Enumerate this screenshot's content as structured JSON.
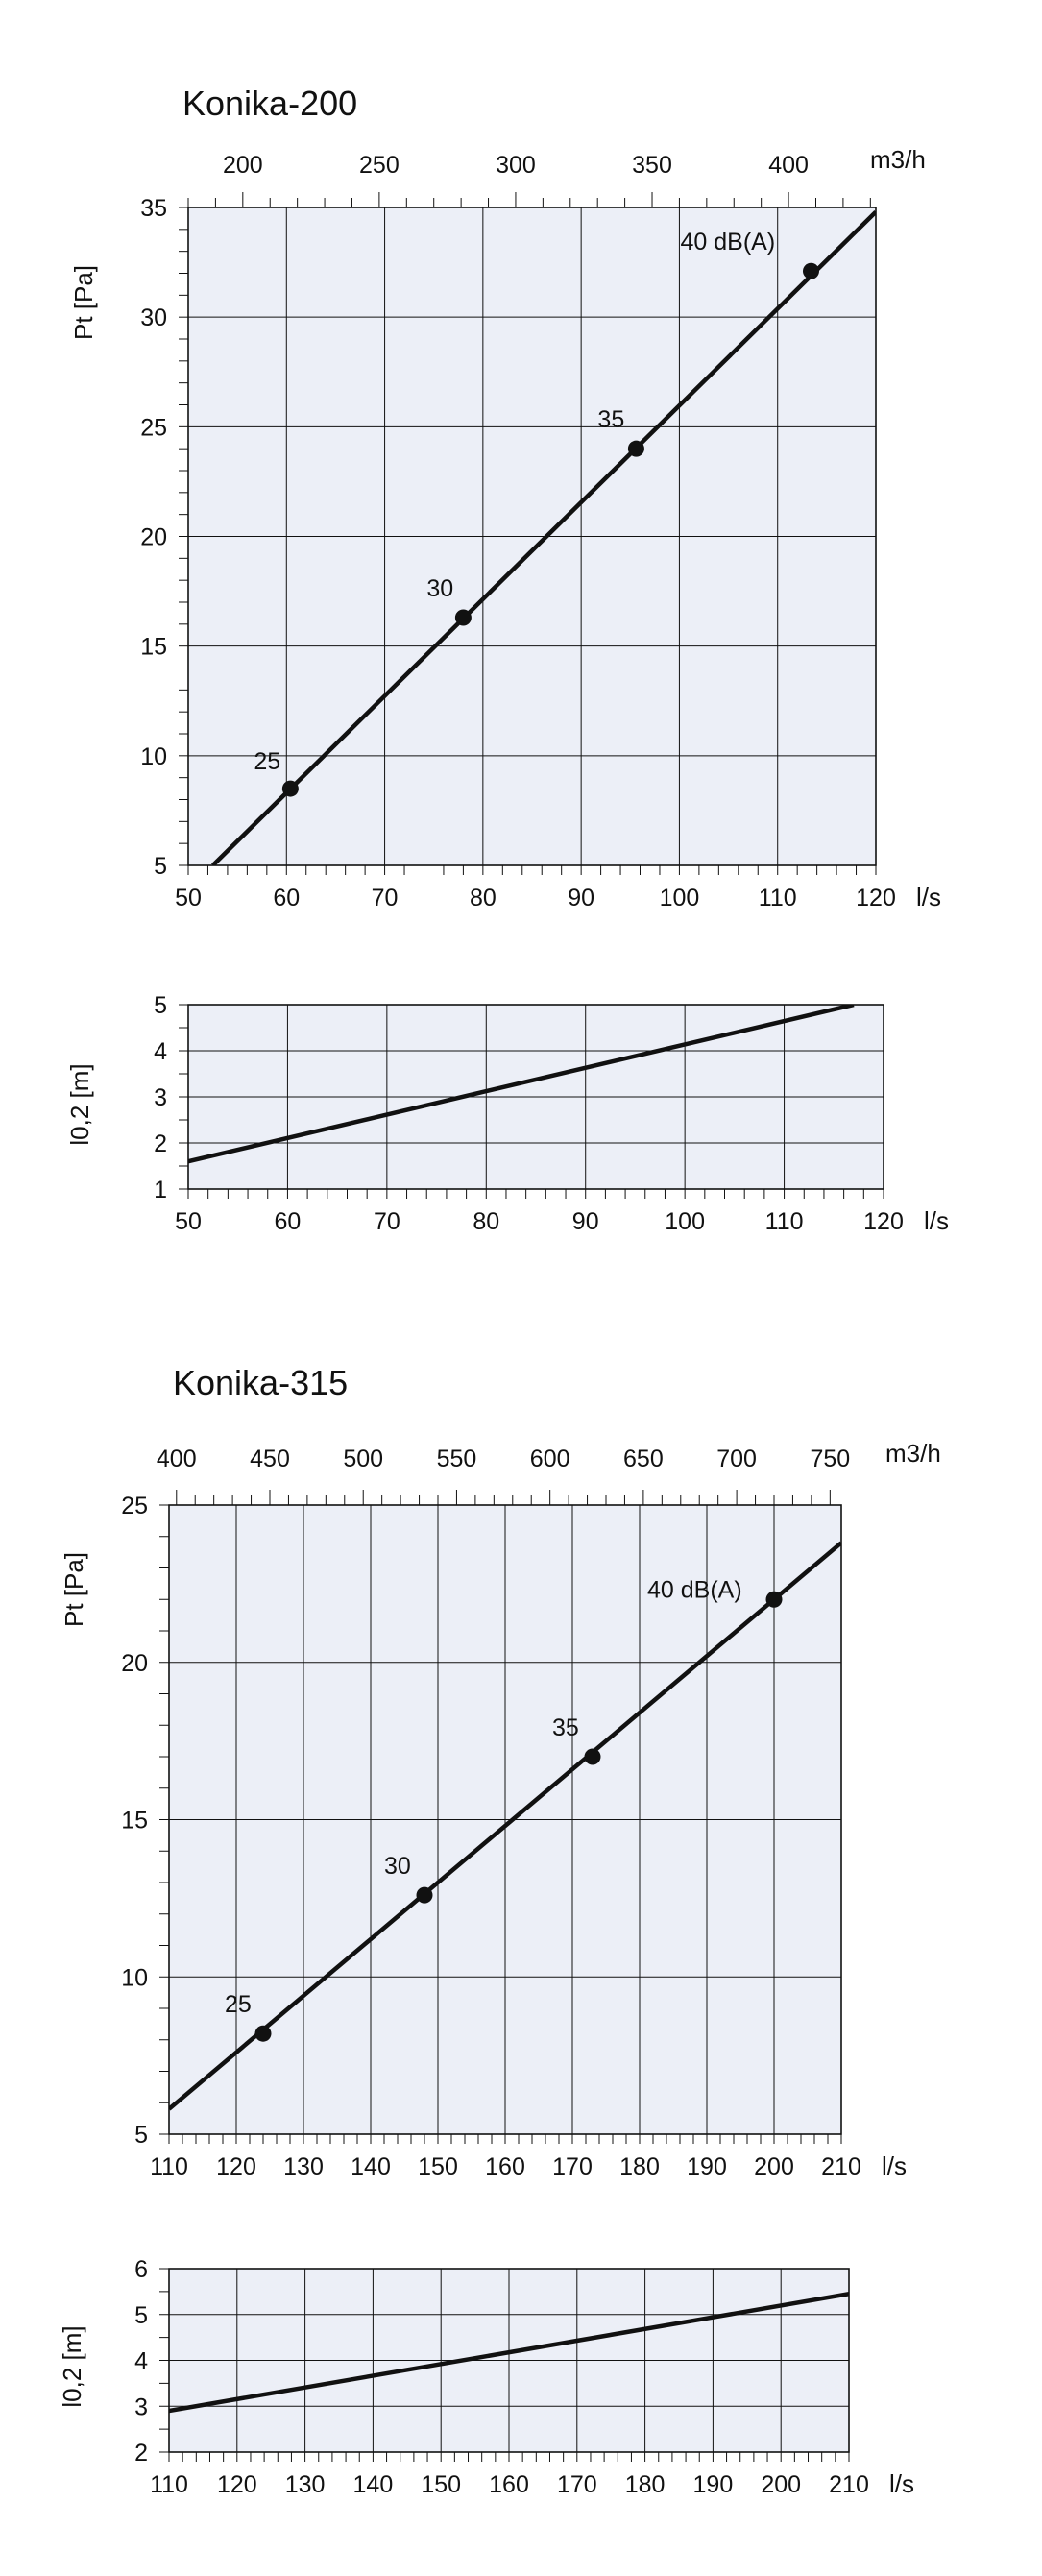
{
  "colors": {
    "plot_bg": "#eceff7",
    "ink": "#111111"
  },
  "chart_data": [
    {
      "type": "line",
      "title": "Konika-200",
      "xlabel": "l/s",
      "x2label": "m3/h",
      "ylabel": "Pt [Pa]",
      "xlim": [
        50,
        120
      ],
      "ylim": [
        5,
        35
      ],
      "x_ticks": [
        "50",
        "60",
        "70",
        "80",
        "90",
        "100",
        "110",
        "120"
      ],
      "y_ticks": [
        "5",
        "10",
        "15",
        "20",
        "25",
        "30",
        "35"
      ],
      "x2_ticks": [
        "200",
        "250",
        "300",
        "350",
        "400"
      ],
      "grid": true,
      "series": [
        {
          "x": [
            52.5,
            120
          ],
          "y": [
            5,
            34.8
          ]
        }
      ],
      "points": [
        {
          "x": 60.4,
          "y": 8.5,
          "label": "25"
        },
        {
          "x": 78.0,
          "y": 16.3,
          "label": "30"
        },
        {
          "x": 95.6,
          "y": 24.0,
          "label": "35"
        },
        {
          "x": 113.4,
          "y": 32.1,
          "label": "40 dB(A)"
        }
      ]
    },
    {
      "type": "line",
      "title": "",
      "xlabel": "l/s",
      "ylabel": "l0,2 [m]",
      "xlim": [
        50,
        120
      ],
      "ylim": [
        1,
        5
      ],
      "x_ticks": [
        "50",
        "60",
        "70",
        "80",
        "90",
        "100",
        "110",
        "120"
      ],
      "y_ticks": [
        "1",
        "2",
        "3",
        "4",
        "5"
      ],
      "grid": true,
      "series": [
        {
          "x": [
            50,
            117
          ],
          "y": [
            1.6,
            5.0
          ]
        }
      ]
    },
    {
      "type": "line",
      "title": "Konika-315",
      "xlabel": "l/s",
      "x2label": "m3/h",
      "ylabel": "Pt [Pa]",
      "xlim": [
        110,
        210
      ],
      "ylim": [
        5,
        25
      ],
      "x_ticks": [
        "110",
        "120",
        "130",
        "140",
        "150",
        "160",
        "170",
        "180",
        "190",
        "200",
        "210"
      ],
      "y_ticks": [
        "5",
        "10",
        "15",
        "20",
        "25"
      ],
      "x2_ticks": [
        "400",
        "450",
        "500",
        "550",
        "600",
        "650",
        "700",
        "750"
      ],
      "grid": true,
      "series": [
        {
          "x": [
            110,
            210
          ],
          "y": [
            5.8,
            23.8
          ]
        }
      ],
      "points": [
        {
          "x": 124,
          "y": 8.2,
          "label": "25"
        },
        {
          "x": 148,
          "y": 12.6,
          "label": "30"
        },
        {
          "x": 173,
          "y": 17.0,
          "label": "35"
        },
        {
          "x": 200,
          "y": 22.0,
          "label": "40 dB(A)"
        }
      ]
    },
    {
      "type": "line",
      "title": "",
      "xlabel": "l/s",
      "ylabel": "l0,2 [m]",
      "xlim": [
        110,
        210
      ],
      "ylim": [
        2,
        6
      ],
      "x_ticks": [
        "110",
        "120",
        "130",
        "140",
        "150",
        "160",
        "170",
        "180",
        "190",
        "200",
        "210"
      ],
      "y_ticks": [
        "2",
        "3",
        "4",
        "5",
        "6"
      ],
      "grid": true,
      "series": [
        {
          "x": [
            110,
            210
          ],
          "y": [
            2.9,
            5.45
          ]
        }
      ]
    }
  ]
}
